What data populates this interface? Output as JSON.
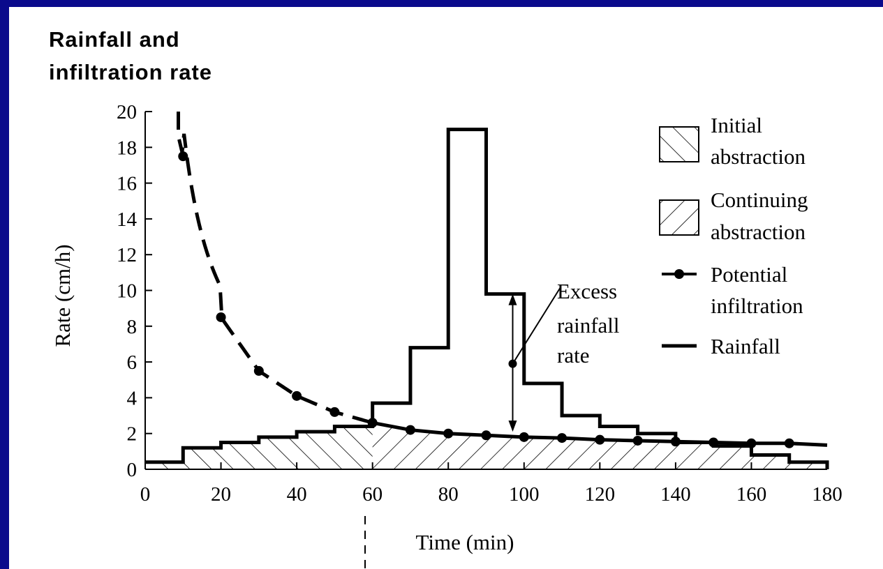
{
  "chart_data": {
    "type": "line",
    "title": "Rainfall and infiltration rate",
    "title_lines": [
      "Rainfall and",
      "infiltration rate"
    ],
    "xlabel": "Time (min)",
    "ylabel": "Rate (cm/h)",
    "xlim": [
      0,
      180
    ],
    "ylim": [
      0,
      20
    ],
    "xticks": [
      0,
      20,
      40,
      60,
      80,
      100,
      120,
      140,
      160,
      180
    ],
    "yticks": [
      0,
      2,
      4,
      6,
      8,
      10,
      12,
      14,
      16,
      18,
      20
    ],
    "grid": false,
    "legend_position": "right",
    "legend": [
      {
        "key": "initial",
        "lines": [
          "Initial",
          "abstraction"
        ]
      },
      {
        "key": "continuing",
        "lines": [
          "Continuing",
          "abstraction"
        ]
      },
      {
        "key": "potential",
        "lines": [
          "Potential",
          "infiltration"
        ]
      },
      {
        "key": "rainfall",
        "lines": [
          "Rainfall"
        ]
      }
    ],
    "rainfall": {
      "type": "step",
      "edges": [
        0,
        10,
        20,
        30,
        40,
        50,
        60,
        70,
        80,
        90,
        100,
        110,
        120,
        130,
        140,
        150,
        160,
        170,
        180
      ],
      "values": [
        0.4,
        1.2,
        1.5,
        1.8,
        2.1,
        2.4,
        3.7,
        6.8,
        19.0,
        9.8,
        4.8,
        3.0,
        2.4,
        2.0,
        1.5,
        1.3,
        0.8,
        0.4
      ]
    },
    "potential_infiltration": {
      "points": [
        {
          "x": 10,
          "y": 17.5
        },
        {
          "x": 20,
          "y": 8.5
        },
        {
          "x": 30,
          "y": 5.5
        },
        {
          "x": 40,
          "y": 4.1
        },
        {
          "x": 50,
          "y": 3.2
        },
        {
          "x": 60,
          "y": 2.6
        },
        {
          "x": 70,
          "y": 2.2
        },
        {
          "x": 80,
          "y": 2.0
        },
        {
          "x": 90,
          "y": 1.9
        },
        {
          "x": 100,
          "y": 1.8
        },
        {
          "x": 110,
          "y": 1.75
        },
        {
          "x": 120,
          "y": 1.65
        },
        {
          "x": 130,
          "y": 1.6
        },
        {
          "x": 140,
          "y": 1.55
        },
        {
          "x": 150,
          "y": 1.5
        },
        {
          "x": 160,
          "y": 1.45
        },
        {
          "x": 170,
          "y": 1.45
        }
      ],
      "dashed_until_x": 60,
      "ponding_time": 60
    },
    "annotation": {
      "lines": [
        "Excess",
        "rainfall",
        "rate"
      ],
      "arrow_x": 97,
      "arrow_y_top": 9.8,
      "arrow_y_bottom": 2.1,
      "marker_y": 5.9
    }
  }
}
